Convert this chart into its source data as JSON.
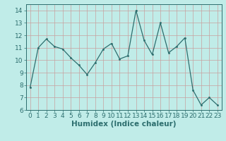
{
  "x": [
    0,
    1,
    2,
    3,
    4,
    5,
    6,
    7,
    8,
    9,
    10,
    11,
    12,
    13,
    14,
    15,
    16,
    17,
    18,
    19,
    20,
    21,
    22,
    23
  ],
  "y": [
    7.8,
    11.0,
    11.7,
    11.1,
    10.9,
    10.2,
    9.6,
    8.85,
    9.8,
    10.9,
    11.35,
    10.1,
    10.35,
    14.0,
    11.6,
    10.45,
    13.0,
    10.6,
    11.1,
    11.8,
    7.6,
    6.4,
    7.0,
    6.4
  ],
  "xlabel": "Humidex (Indice chaleur)",
  "xlim": [
    -0.5,
    23.5
  ],
  "ylim": [
    6,
    14.5
  ],
  "yticks": [
    6,
    7,
    8,
    9,
    10,
    11,
    12,
    13,
    14
  ],
  "xticks": [
    0,
    1,
    2,
    3,
    4,
    5,
    6,
    7,
    8,
    9,
    10,
    11,
    12,
    13,
    14,
    15,
    16,
    17,
    18,
    19,
    20,
    21,
    22,
    23
  ],
  "line_color": "#2d6e6e",
  "marker_color": "#2d6e6e",
  "bg_color": "#c0ece8",
  "grid_color": "#a8d8d0",
  "tick_color": "#2d6e6e",
  "label_color": "#2d6e6e",
  "bottom_bar_color": "#3a7070",
  "font_size": 6.5,
  "xlabel_fontsize": 7.5
}
